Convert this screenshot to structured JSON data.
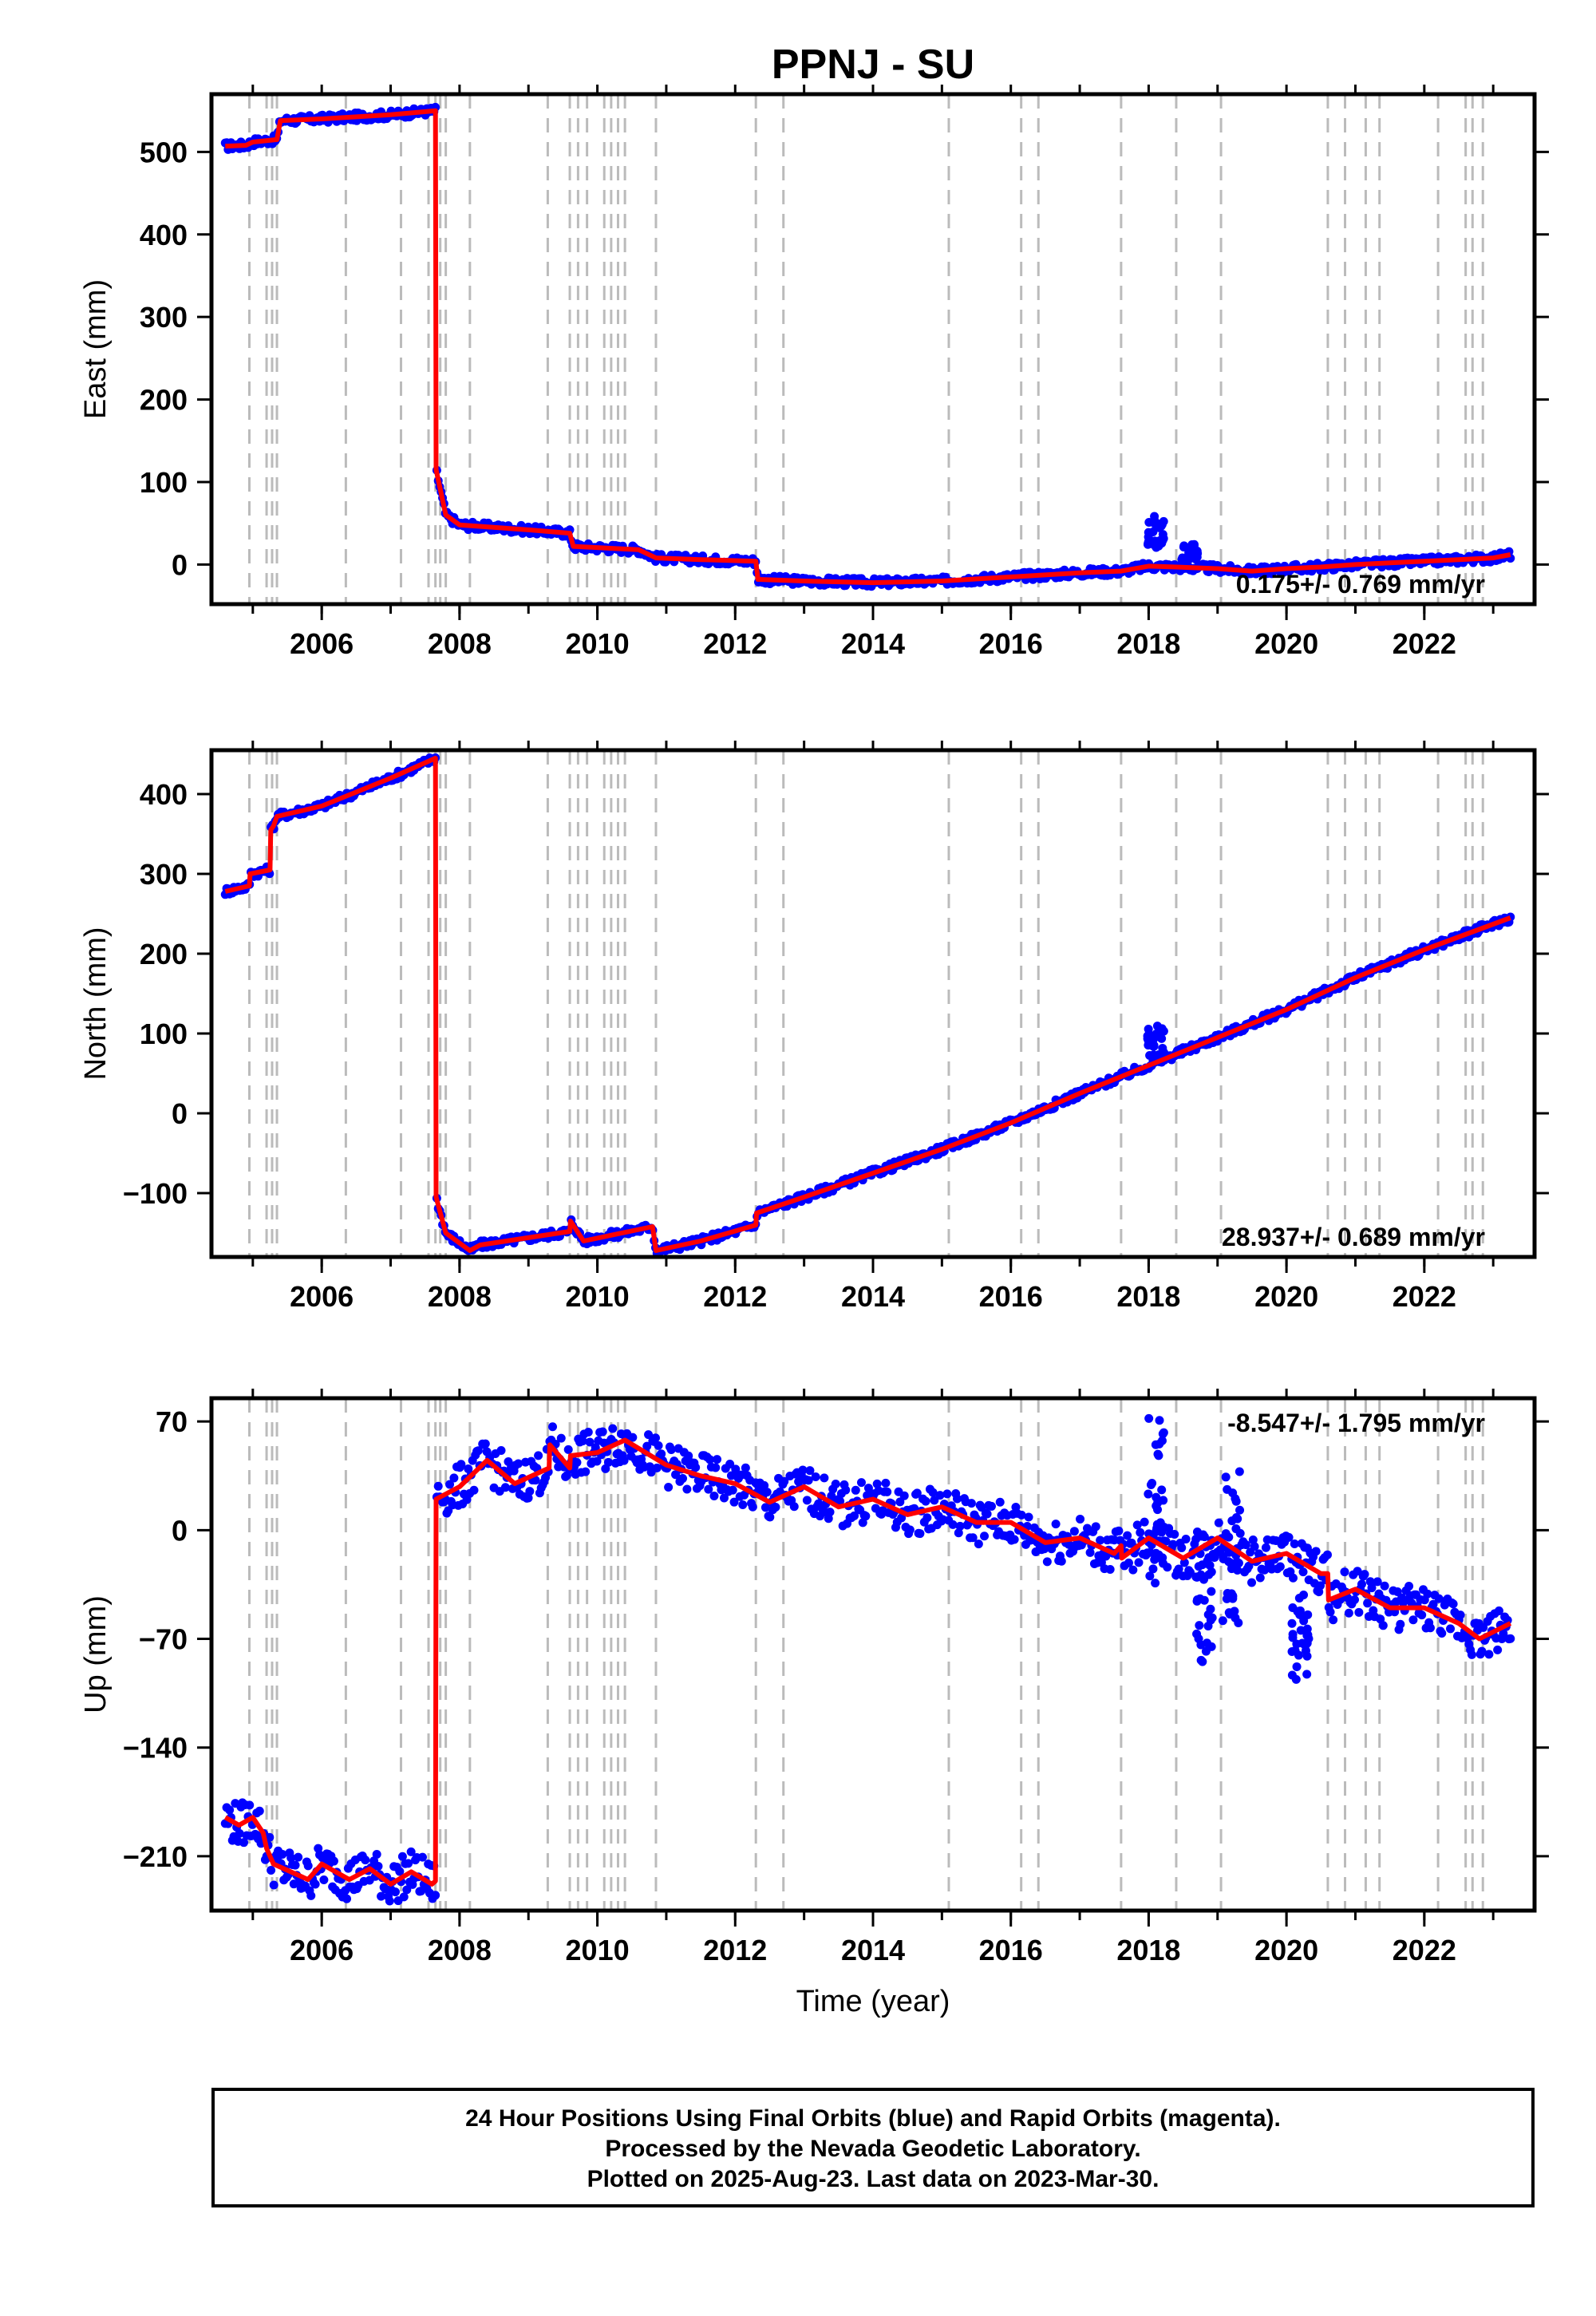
{
  "chart_data": {
    "title": "PPNJ - SU",
    "type": "scatter",
    "xlabel": "Time (year)",
    "xlim": [
      2004.4,
      2023.6
    ],
    "xticks": [
      2006,
      2008,
      2010,
      2012,
      2014,
      2016,
      2018,
      2020,
      2022
    ],
    "event_lines": [
      2004.95,
      2005.2,
      2005.28,
      2005.35,
      2006.35,
      2007.15,
      2007.55,
      2007.65,
      2007.72,
      2007.8,
      2008.15,
      2009.28,
      2009.6,
      2009.72,
      2009.85,
      2010.1,
      2010.2,
      2010.3,
      2010.4,
      2010.85,
      2012.3,
      2012.7,
      2015.1,
      2016.15,
      2016.4,
      2017.6,
      2018.4,
      2019.05,
      2020.6,
      2020.85,
      2021.15,
      2021.35,
      2022.2,
      2022.6,
      2022.7,
      2022.85
    ],
    "marker_colors": {
      "observations": "#0000ff",
      "model": "#ff0000",
      "event_lines": "#bbbbbb"
    },
    "panels": [
      {
        "ylabel": "East (mm)",
        "ylim": [
          -48,
          570
        ],
        "yticks": [
          0,
          100,
          200,
          300,
          400,
          500
        ],
        "rate": "0.175+/- 0.769 mm/yr",
        "rate_position": "bottom-right",
        "model": {
          "x": [
            2004.6,
            2004.9,
            2005.0,
            2005.35,
            2005.4,
            2006.0,
            2007.0,
            2007.65,
            2007.66,
            2007.8,
            2008.0,
            2009.0,
            2009.6,
            2009.65,
            2010.6,
            2010.85,
            2011.5,
            2012.3,
            2012.33,
            2013.0,
            2014.0,
            2015.0,
            2016.0,
            2017.0,
            2017.6,
            2018.0,
            2018.4,
            2019.0,
            2019.5,
            2020.0,
            2020.5,
            2021.0,
            2021.5,
            2022.0,
            2022.5,
            2023.0,
            2023.25
          ],
          "y": [
            507,
            508,
            512,
            515,
            538,
            540,
            545,
            550,
            115,
            60,
            48,
            42,
            38,
            22,
            18,
            8,
            6,
            4,
            -18,
            -20,
            -22,
            -20,
            -15,
            -10,
            -8,
            -2,
            -3,
            -5,
            -8,
            -5,
            -3,
            0,
            2,
            4,
            6,
            8,
            12
          ]
        },
        "anomalies": [
          {
            "x": 2018.1,
            "y_min": 20,
            "y_max": 60
          },
          {
            "x": 2018.6,
            "y_min": 5,
            "y_max": 25
          }
        ]
      },
      {
        "ylabel": "North (mm)",
        "ylim": [
          -180,
          455
        ],
        "yticks": [
          -100,
          0,
          100,
          200,
          300,
          400
        ],
        "rate": "28.937+/- 0.689 mm/yr",
        "rate_position": "bottom-right",
        "model": {
          "x": [
            2004.6,
            2004.95,
            2004.96,
            2005.25,
            2005.26,
            2005.3,
            2005.35,
            2006.0,
            2007.0,
            2007.65,
            2007.66,
            2007.8,
            2008.15,
            2008.3,
            2009.6,
            2009.61,
            2009.8,
            2010.8,
            2010.85,
            2011.5,
            2012.3,
            2012.31,
            2013.0,
            2014.0,
            2015.0,
            2016.0,
            2017.0,
            2018.0,
            2019.0,
            2020.0,
            2021.0,
            2022.0,
            2023.25
          ],
          "y": [
            278,
            285,
            300,
            305,
            355,
            360,
            372,
            385,
            420,
            445,
            -105,
            -150,
            -172,
            -165,
            -148,
            -135,
            -160,
            -142,
            -172,
            -160,
            -140,
            -125,
            -105,
            -75,
            -45,
            -12,
            25,
            60,
            95,
            130,
            170,
            205,
            245
          ]
        },
        "anomalies": [
          {
            "x": 2018.1,
            "y_min": 70,
            "y_max": 110
          }
        ]
      },
      {
        "ylabel": "Up (mm)",
        "ylim": [
          -245,
          85
        ],
        "yticks": [
          -210,
          -140,
          -70,
          0,
          70
        ],
        "rate": "-8.547+/- 1.795 mm/yr",
        "rate_position": "top-right",
        "model": {
          "x": [
            2004.6,
            2004.8,
            2005.0,
            2005.15,
            2005.2,
            2005.3,
            2005.8,
            2006.0,
            2006.4,
            2006.7,
            2007.0,
            2007.3,
            2007.6,
            2007.65,
            2007.66,
            2008.0,
            2008.4,
            2008.8,
            2009.3,
            2009.31,
            2009.6,
            2009.61,
            2010.0,
            2010.4,
            2011.0,
            2011.5,
            2012.0,
            2012.5,
            2013.0,
            2013.5,
            2014.0,
            2014.5,
            2015.0,
            2015.5,
            2016.0,
            2016.5,
            2017.0,
            2017.5,
            2017.6,
            2017.61,
            2018.0,
            2018.5,
            2019.0,
            2019.5,
            2020.0,
            2020.5,
            2020.6,
            2020.61,
            2021.0,
            2021.5,
            2022.0,
            2022.5,
            2022.8,
            2023.25
          ],
          "y": [
            -185,
            -190,
            -185,
            -195,
            -205,
            -215,
            -225,
            -215,
            -225,
            -218,
            -228,
            -220,
            -228,
            -226,
            20,
            28,
            45,
            30,
            40,
            55,
            40,
            48,
            50,
            58,
            42,
            35,
            30,
            18,
            28,
            15,
            20,
            10,
            15,
            5,
            5,
            -8,
            -5,
            -15,
            -10,
            -18,
            -5,
            -18,
            -5,
            -20,
            -15,
            -28,
            -28,
            -45,
            -38,
            -50,
            -50,
            -60,
            -70,
            -60
          ]
        },
        "anomalies": [
          {
            "x": 2018.1,
            "y_min": -40,
            "y_max": 78
          },
          {
            "x": 2018.8,
            "y_min": -85,
            "y_max": -20
          },
          {
            "x": 2019.2,
            "y_min": -60,
            "y_max": 40
          },
          {
            "x": 2020.2,
            "y_min": -100,
            "y_max": -40
          }
        ]
      }
    ]
  },
  "footer": {
    "line1": "24 Hour Positions Using Final Orbits (blue) and Rapid Orbits (magenta).",
    "line2": "Processed by the Nevada Geodetic Laboratory.",
    "line3": "Plotted on 2025-Aug-23. Last data on 2023-Mar-30."
  }
}
